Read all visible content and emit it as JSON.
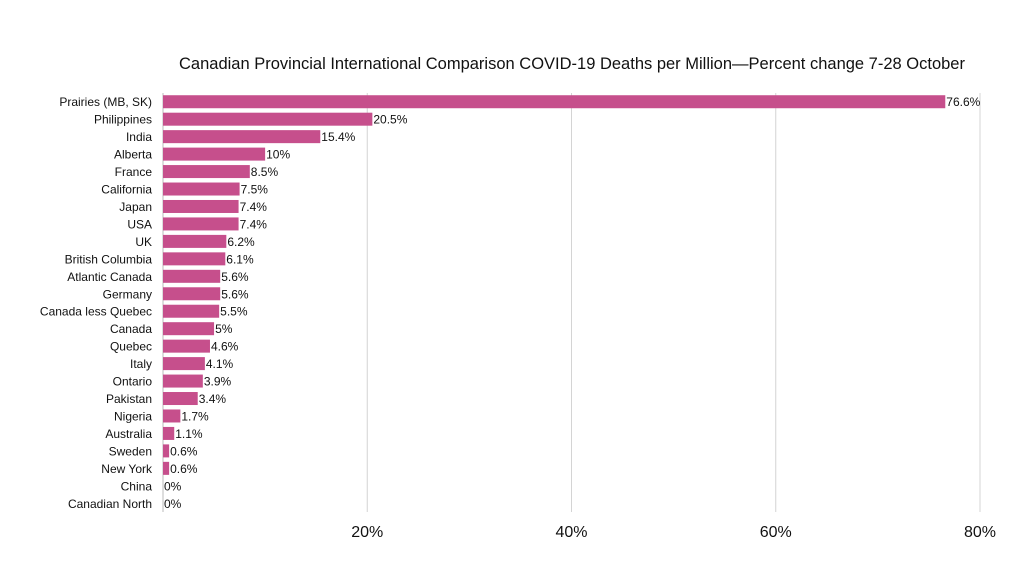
{
  "chart_data": {
    "type": "bar",
    "orientation": "horizontal",
    "title": "Canadian Provincial International Comparison COVID-19 Deaths per Million—Percent change 7-28 October",
    "xlabel": "",
    "ylabel": "",
    "xlim": [
      0,
      80
    ],
    "xticks": [
      20,
      40,
      60,
      80
    ],
    "xtick_labels": [
      "20%",
      "40%",
      "60%",
      "80%"
    ],
    "grid": "vertical",
    "legend": "none",
    "bar_color": "#c64f8c",
    "categories": [
      "Prairies (MB, SK)",
      "Philippines",
      "India",
      "Alberta",
      "France",
      "California",
      "Japan",
      "USA",
      "UK",
      "British Columbia",
      "Atlantic Canada",
      "Germany",
      "Canada less Quebec",
      "Canada",
      "Quebec",
      "Italy",
      "Ontario",
      "Pakistan",
      "Nigeria",
      "Australia",
      "Sweden",
      "New York",
      "China",
      "Canadian North"
    ],
    "values": [
      76.6,
      20.5,
      15.4,
      10,
      8.5,
      7.5,
      7.4,
      7.4,
      6.2,
      6.1,
      5.6,
      5.6,
      5.5,
      5,
      4.6,
      4.1,
      3.9,
      3.4,
      1.7,
      1.1,
      0.6,
      0.6,
      0,
      0
    ],
    "value_labels": [
      "76.6%",
      "20.5%",
      "15.4%",
      "10%",
      "8.5%",
      "7.5%",
      "7.4%",
      "7.4%",
      "6.2%",
      "6.1%",
      "5.6%",
      "5.6%",
      "5.5%",
      "5%",
      "4.6%",
      "4.1%",
      "3.9%",
      "3.4%",
      "1.7%",
      "1.1%",
      "0.6%",
      "0.6%",
      "0%",
      "0%"
    ]
  }
}
